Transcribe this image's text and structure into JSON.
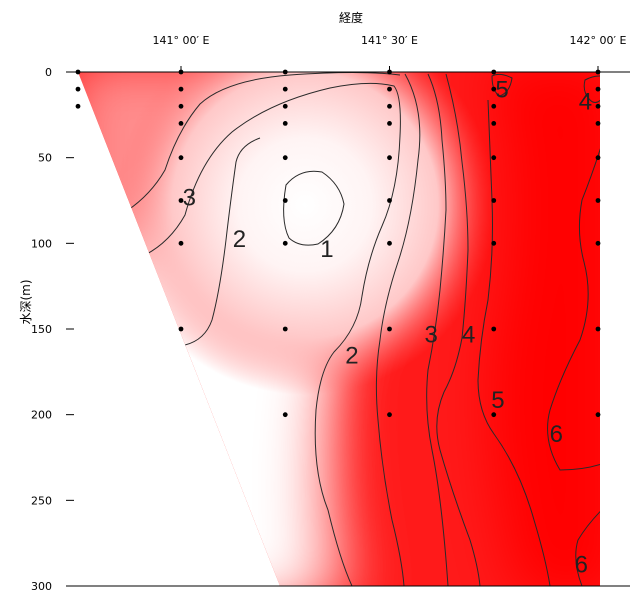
{
  "chart_data": {
    "type": "heatmap",
    "title": "",
    "xlabel": "経度",
    "ylabel": "水深(m)",
    "x_ticks": [
      {
        "value": 141.0,
        "label": "141° 00′ E"
      },
      {
        "value": 141.5,
        "label": "141° 30′ E"
      },
      {
        "value": 142.0,
        "label": "142° 00′ E"
      }
    ],
    "y_ticks": [
      {
        "value": 0,
        "label": "0"
      },
      {
        "value": 50,
        "label": "50"
      },
      {
        "value": 100,
        "label": "100"
      },
      {
        "value": 150,
        "label": "150"
      },
      {
        "value": 200,
        "label": "200"
      },
      {
        "value": 250,
        "label": "250"
      },
      {
        "value": 300,
        "label": "300"
      }
    ],
    "xlim": [
      140.5,
      142.2
    ],
    "ylim": [
      0,
      300
    ],
    "colors": {
      "low": "#ffffff",
      "high": "#ff0000"
    },
    "stations": [
      {
        "x": 140.5,
        "depths": [
          0,
          10,
          20
        ]
      },
      {
        "x": 141.0,
        "depths": [
          0,
          10,
          20,
          30,
          50,
          75,
          100,
          150
        ]
      },
      {
        "x": 141.25,
        "depths": [
          0,
          10,
          20,
          30,
          50,
          75,
          100,
          150,
          200
        ]
      },
      {
        "x": 141.5,
        "depths": [
          0,
          10,
          20,
          30,
          50,
          75,
          100,
          150,
          200
        ]
      },
      {
        "x": 141.75,
        "depths": [
          0,
          10,
          20,
          30,
          50,
          75,
          100,
          150,
          200
        ]
      },
      {
        "x": 142.0,
        "depths": [
          0,
          10,
          20,
          30,
          50,
          75,
          100,
          150,
          200
        ]
      }
    ],
    "contour_labels": [
      {
        "text": "1",
        "x": 141.35,
        "depth": 108
      },
      {
        "text": "2",
        "x": 141.14,
        "depth": 102
      },
      {
        "text": "2",
        "x": 141.41,
        "depth": 170
      },
      {
        "text": "3",
        "x": 141.02,
        "depth": 78
      },
      {
        "text": "3",
        "x": 141.6,
        "depth": 158
      },
      {
        "text": "4",
        "x": 141.69,
        "depth": 158
      },
      {
        "text": "4",
        "x": 141.97,
        "depth": 22
      },
      {
        "text": "5",
        "x": 141.77,
        "depth": 15
      },
      {
        "text": "5",
        "x": 141.76,
        "depth": 196
      },
      {
        "text": "6",
        "x": 141.9,
        "depth": 216
      },
      {
        "text": "6",
        "x": 141.96,
        "depth": 292
      }
    ]
  }
}
